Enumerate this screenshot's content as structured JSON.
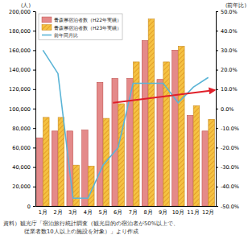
{
  "chart_data": {
    "type": "bar",
    "categories": [
      "1月",
      "2月",
      "3月",
      "4月",
      "5月",
      "6月",
      "7月",
      "8月",
      "9月",
      "10月",
      "11月",
      "12月"
    ],
    "series": [
      {
        "name": "青森県宿泊者数（H22年実績）",
        "type": "bar",
        "color": "#e48a8a",
        "values": [
          70000,
          77000,
          77000,
          78000,
          127000,
          131000,
          131000,
          170000,
          130000,
          160000,
          93000,
          77000
        ]
      },
      {
        "name": "青森県宿泊者数（H23年実績）",
        "type": "bar",
        "color": "#f5c242",
        "values": [
          91000,
          91000,
          42000,
          41000,
          90000,
          105000,
          148000,
          192000,
          148000,
          164000,
          103000,
          89000
        ]
      },
      {
        "name": "前年同月比",
        "type": "line",
        "axis": "y2",
        "color": "#5ab4d6",
        "values": [
          30.0,
          18.0,
          -46.0,
          -46.0,
          -29.0,
          -20.0,
          13.0,
          13.0,
          13.0,
          3.0,
          11.0,
          16.0
        ]
      }
    ],
    "y_label": "(人)",
    "y2_label": "(前年比)",
    "ylim": [
      0,
      200000
    ],
    "yticks": [
      0,
      {
        "value": 20000,
        "label": "20,000"
      },
      {
        "value": 40000,
        "label": "40,000"
      },
      {
        "value": 60000,
        "label": "60,000"
      },
      {
        "value": 80000,
        "label": "80,000"
      },
      {
        "value": 100000,
        "label": "100,000"
      },
      {
        "value": 120000,
        "label": "120,000"
      },
      {
        "value": 140000,
        "label": "140,000"
      },
      {
        "value": 160000,
        "label": "160,000"
      },
      {
        "value": 180000,
        "label": "180,000"
      },
      {
        "value": 200000,
        "label": "200,000"
      }
    ],
    "y2lim": [
      -50,
      50
    ],
    "y2ticks": [
      {
        "value": -50,
        "label": "-50.0%"
      },
      {
        "value": -40,
        "label": "-40.0%"
      },
      {
        "value": -30,
        "label": "-30.0%"
      },
      {
        "value": -20,
        "label": "-20.0%"
      },
      {
        "value": -10,
        "label": "-10.0%"
      },
      {
        "value": 0,
        "label": "0.0%"
      },
      {
        "value": 10,
        "label": "10.0%"
      },
      {
        "value": 20,
        "label": "20.0%"
      },
      {
        "value": 30,
        "label": "30.0%"
      },
      {
        "value": 40,
        "label": "40.0%"
      },
      {
        "value": 50,
        "label": "50.0%"
      }
    ],
    "grid": false,
    "legend": "upper left",
    "source": [
      "資料）観光庁「宿泊旅行統計調査（観光目的の宿泊者が50%以上で、",
      "従業者数10人以上の施設を対象）」より作成"
    ]
  }
}
